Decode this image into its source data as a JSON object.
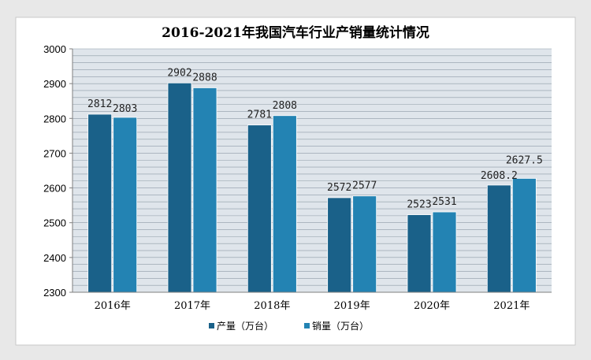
{
  "chart_data": {
    "type": "bar",
    "title": "2016-2021年我国汽车行业产销量统计情况",
    "xlabel": "",
    "ylabel": "",
    "categories": [
      "2016年",
      "2017年",
      "2018年",
      "2019年",
      "2020年",
      "2021年"
    ],
    "series": [
      {
        "name": "产量（万台）",
        "values": [
          2812,
          2902,
          2781,
          2572,
          2523,
          2608.2
        ],
        "labels": [
          "2812",
          "2902",
          "2781",
          "2572",
          "2523",
          "2608.2"
        ]
      },
      {
        "name": "销量（万台）",
        "values": [
          2803,
          2888,
          2808,
          2577,
          2531,
          2627.5
        ],
        "labels": [
          "2803",
          "2888",
          "2808",
          "2577",
          "2531",
          "2627.5"
        ]
      }
    ],
    "ylim": [
      2300,
      3000
    ],
    "yticks": [
      2300,
      2400,
      2500,
      2600,
      2700,
      2800,
      2900,
      3000
    ],
    "grid": true,
    "legend_position": "bottom",
    "colors": [
      "#1a6189",
      "#2383b3"
    ]
  }
}
